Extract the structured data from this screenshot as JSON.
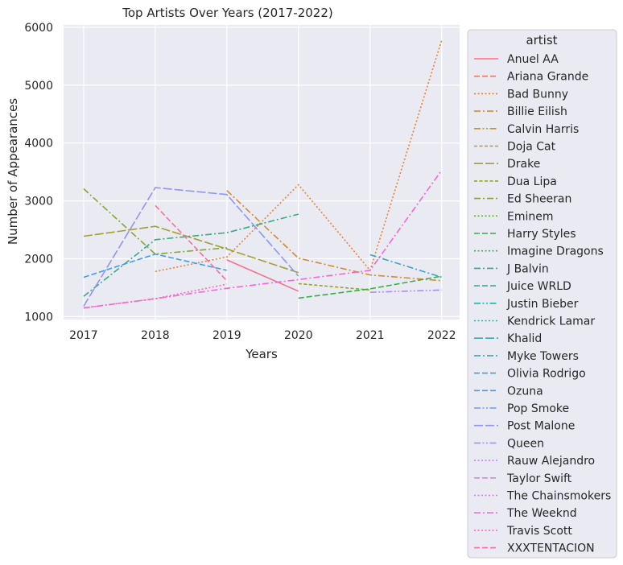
{
  "chart_data": {
    "type": "line",
    "title": "Top Artists Over Years (2017-2022)",
    "xlabel": "Years",
    "ylabel": "Number of Appearances",
    "x": [
      2017,
      2018,
      2019,
      2020,
      2021,
      2022
    ],
    "xlim": [
      2016.72,
      2022.25
    ],
    "ylim": [
      950,
      6040
    ],
    "yticks": [
      1000,
      2000,
      3000,
      4000,
      5000,
      6000
    ],
    "grid": true,
    "legend": {
      "title": "artist",
      "placement": "outside-right"
    },
    "series": [
      {
        "name": "Anuel AA",
        "color": "#f77189",
        "dash": "solid",
        "values": [
          null,
          null,
          1980,
          1440,
          null,
          null
        ]
      },
      {
        "name": "Ariana Grande",
        "color": "#f7754f",
        "dash": "dashed",
        "values": [
          null,
          null,
          null,
          null,
          null,
          null
        ]
      },
      {
        "name": "Bad Bunny",
        "color": "#e98132",
        "dash": "dotted",
        "values": [
          null,
          1780,
          2030,
          3280,
          1800,
          5780
        ]
      },
      {
        "name": "Billie Eilish",
        "color": "#d28b32",
        "dash": "dashdot",
        "values": [
          null,
          null,
          3180,
          2010,
          1720,
          1620
        ]
      },
      {
        "name": "Calvin Harris",
        "color": "#c39432",
        "dash": "dashdotdot",
        "values": [
          null,
          null,
          null,
          null,
          null,
          null
        ]
      },
      {
        "name": "Doja Cat",
        "color": "#b39a31",
        "dash": "dense-dash",
        "values": [
          null,
          null,
          null,
          null,
          1350,
          null
        ]
      },
      {
        "name": "Drake",
        "color": "#a39f31",
        "dash": "longdash",
        "values": [
          2390,
          2560,
          2170,
          1760,
          null,
          1650
        ]
      },
      {
        "name": "Dua Lipa",
        "color": "#95a331",
        "dash": "dense-dash",
        "values": [
          null,
          null,
          null,
          1570,
          1460,
          null
        ]
      },
      {
        "name": "Ed Sheeran",
        "color": "#84a731",
        "dash": "dashdot",
        "values": [
          3210,
          2080,
          2190,
          null,
          null,
          1820
        ]
      },
      {
        "name": "Eminem",
        "color": "#5eae32",
        "dash": "dotted",
        "values": [
          null,
          null,
          null,
          null,
          null,
          null
        ]
      },
      {
        "name": "Harry Styles",
        "color": "#33b040",
        "dash": "dashed",
        "values": [
          null,
          null,
          null,
          1320,
          1480,
          1700
        ]
      },
      {
        "name": "Imagine Dragons",
        "color": "#34ae6a",
        "dash": "dotted",
        "values": [
          null,
          null,
          null,
          null,
          null,
          null
        ]
      },
      {
        "name": "J Balvin",
        "color": "#35ac82",
        "dash": "dashdot",
        "values": [
          1350,
          2330,
          2450,
          2770,
          null,
          null
        ]
      },
      {
        "name": "Juice WRLD",
        "color": "#36ab94",
        "dash": "dashed",
        "values": [
          null,
          null,
          null,
          null,
          null,
          null
        ]
      },
      {
        "name": "Justin Bieber",
        "color": "#37aaa0",
        "dash": "dashdotdot",
        "values": [
          null,
          null,
          null,
          null,
          null,
          null
        ]
      },
      {
        "name": "Kendrick Lamar",
        "color": "#38a8ac",
        "dash": "dotted",
        "values": [
          null,
          null,
          null,
          null,
          null,
          null
        ]
      },
      {
        "name": "Khalid",
        "color": "#38a7b8",
        "dash": "longdash",
        "values": [
          null,
          null,
          null,
          null,
          null,
          null
        ]
      },
      {
        "name": "Myke Towers",
        "color": "#39a5c6",
        "dash": "dashdot",
        "values": [
          null,
          null,
          null,
          null,
          2070,
          1680
        ]
      },
      {
        "name": "Olivia Rodrigo",
        "color": "#3ba3d6",
        "dash": "dashed",
        "values": [
          null,
          null,
          null,
          null,
          null,
          null
        ]
      },
      {
        "name": "Ozuna",
        "color": "#3d9fe8",
        "dash": "dashed",
        "values": [
          1680,
          2080,
          1800,
          null,
          null,
          null
        ]
      },
      {
        "name": "Pop Smoke",
        "color": "#6b9af2",
        "dash": "dashdotdot",
        "values": [
          null,
          null,
          null,
          null,
          null,
          null
        ]
      },
      {
        "name": "Post Malone",
        "color": "#8f95f4",
        "dash": "longdash",
        "values": [
          1180,
          3230,
          3110,
          1700,
          null,
          null
        ]
      },
      {
        "name": "Queen",
        "color": "#a98ff4",
        "dash": "dashdotdot",
        "values": [
          null,
          null,
          null,
          null,
          1420,
          1460
        ]
      },
      {
        "name": "Rauw Alejandro",
        "color": "#c186f4",
        "dash": "dotted",
        "values": [
          null,
          null,
          null,
          null,
          null,
          null
        ]
      },
      {
        "name": "Taylor Swift",
        "color": "#da7ff3",
        "dash": "dashed",
        "values": [
          null,
          null,
          null,
          null,
          null,
          null
        ]
      },
      {
        "name": "The Chainsmokers",
        "color": "#ef6cf0",
        "dash": "dotted",
        "values": [
          null,
          null,
          null,
          null,
          null,
          null
        ]
      },
      {
        "name": "The Weeknd",
        "color": "#f567d6",
        "dash": "dashdot",
        "values": [
          1150,
          1310,
          1490,
          1640,
          1800,
          3530
        ]
      },
      {
        "name": "Travis Scott",
        "color": "#f66bb8",
        "dash": "dotted",
        "values": [
          1150,
          1310,
          1560,
          null,
          null,
          null
        ]
      },
      {
        "name": "XXXTENTACION",
        "color": "#f76f9f",
        "dash": "dashed",
        "values": [
          null,
          2920,
          1620,
          null,
          null,
          null
        ]
      }
    ]
  }
}
